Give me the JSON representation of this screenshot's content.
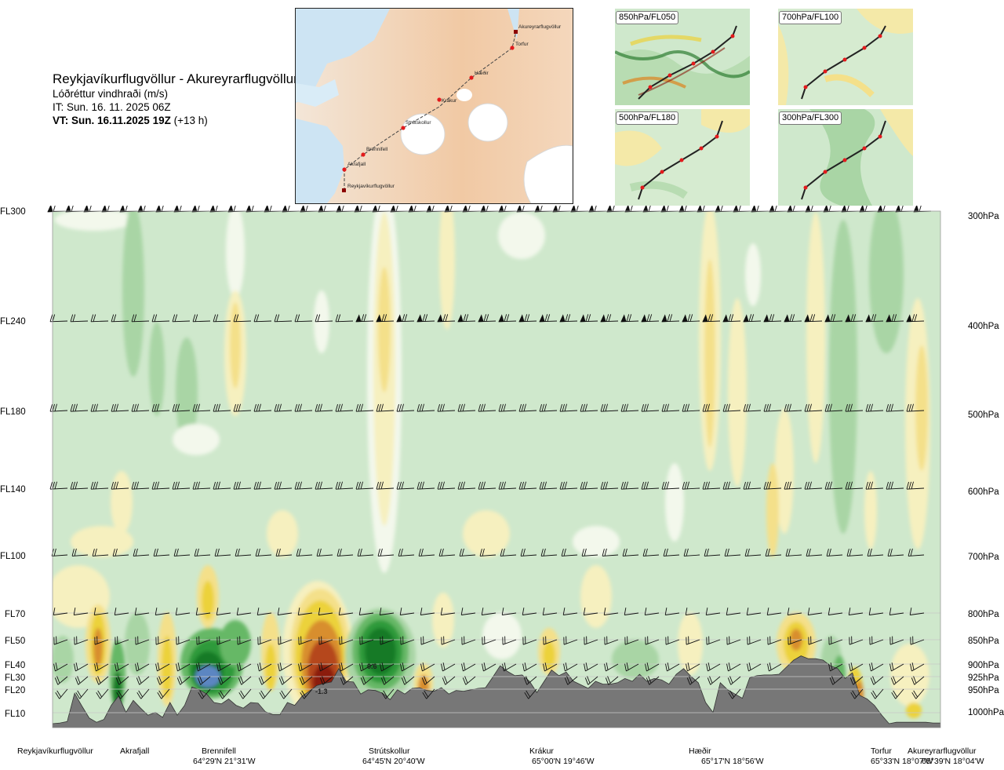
{
  "header": {
    "route": "Reykjavíkurflugvöllur - Akureyrarflugvöllur",
    "subtitle": "Lóðréttur vindhraði (m/s)",
    "issue_time": "IT: Sun. 16. 11. 2025 06Z",
    "valid_label": "VT: Sun. 16.11.2025 19Z",
    "valid_offset": "(+13 h)"
  },
  "route_map": {
    "waypoints": [
      "Reykjavíkurflugvöllur",
      "Akrafjall",
      "Brennifell",
      "Strútskollur",
      "Krákur",
      "Hæðir",
      "Torfur",
      "Akureyrarflugvöllur"
    ]
  },
  "mini_maps": [
    {
      "label": "850hPa/FL050"
    },
    {
      "label": "700hPa/FL100"
    },
    {
      "label": "500hPa/FL180"
    },
    {
      "label": "300hPa/FL300"
    }
  ],
  "colors": {
    "strong_down": "#8b1a0f",
    "down_3": "#b5461b",
    "down_2": "#d88e2f",
    "down_1": "#ecd23a",
    "down_05": "#f4e08a",
    "weak_down": "#f6f0bf",
    "near_zero": "#f3f8ec",
    "background": "#cfe8cc",
    "up_1": "#a9d5a5",
    "up_2": "#66b866",
    "up_3": "#2e9a3a",
    "up_4": "#137a25",
    "strong_up": "#5b86c2",
    "terrain": "#777777"
  },
  "chart_data": {
    "type": "heatmap",
    "title": "Reykjavíkurflugvöllur - Akureyrarflugvöllur",
    "subtitle": "Lóðréttur vindhraði (m/s)",
    "xlabel": "",
    "ylabel": "",
    "flight_levels": [
      "FL300",
      "FL240",
      "FL180",
      "FL140",
      "FL100",
      "FL70",
      "FL50",
      "FL40",
      "FL30",
      "FL20",
      "FL10"
    ],
    "pressure_levels": [
      "300hPa",
      "400hPa",
      "500hPa",
      "600hPa",
      "700hPa",
      "800hPa",
      "850hPa",
      "900hPa",
      "925hPa",
      "950hPa",
      "1000hPa"
    ],
    "locations": [
      {
        "name": "Reykjavíkurflugvöllur",
        "coord": ""
      },
      {
        "name": "Akrafjall",
        "coord": ""
      },
      {
        "name": "Brennifell",
        "coord": "64°29'N 21°31'W"
      },
      {
        "name": "Strútskollur",
        "coord": "64°45'N 20°40'W"
      },
      {
        "name": "Krákur",
        "coord": "65°00'N 19°46'W"
      },
      {
        "name": "Hæðir",
        "coord": "65°17'N 18°56'W"
      },
      {
        "name": "Torfur",
        "coord": "65°33'N 18°07'W"
      },
      {
        "name": "Akureyrarflugvöllur",
        "coord": "65°39'N 18°04'W"
      }
    ],
    "value_labels": [
      "0.6",
      "-1.3"
    ],
    "x_range_km": [
      0,
      250
    ],
    "terrain_elevation_m": [
      0,
      10,
      30,
      430,
      250,
      80,
      20,
      60,
      260,
      390,
      160,
      330,
      220,
      120,
      160,
      90,
      300,
      120,
      260,
      520,
      480,
      420,
      300,
      280,
      350,
      260,
      220,
      300,
      290,
      170,
      130,
      130,
      300,
      260,
      390,
      460,
      540,
      570,
      590,
      780,
      600,
      590,
      420,
      480,
      470,
      430,
      340,
      480,
      420,
      500,
      510,
      470,
      460,
      510,
      420,
      470,
      460,
      480,
      500,
      510,
      660,
      820,
      740,
      680,
      690,
      600,
      440,
      600,
      760,
      680,
      730,
      600,
      550,
      500,
      600,
      560,
      560,
      580,
      640,
      600,
      700,
      600,
      640,
      620,
      560,
      700,
      780,
      670,
      580,
      300,
      160,
      580,
      480,
      420,
      360,
      650,
      680,
      690,
      690,
      700,
      800,
      900,
      960,
      920,
      920,
      900,
      820,
      780,
      640,
      720,
      400,
      350,
      260,
      120,
      0,
      20,
      20,
      20,
      20,
      20,
      10,
      10
    ]
  }
}
